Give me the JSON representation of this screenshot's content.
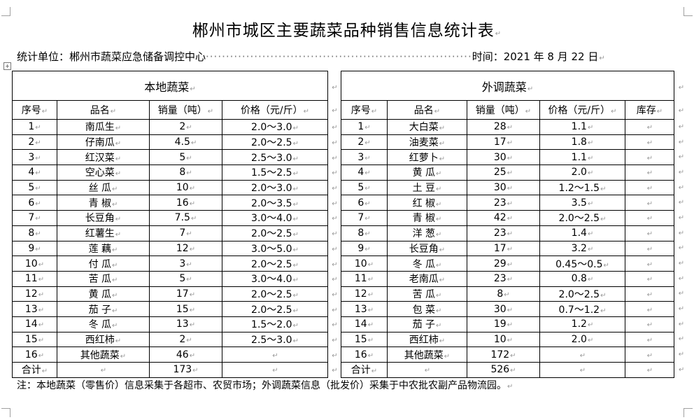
{
  "title": "郴州市城区主要蔬菜品种销售信息统计表",
  "meta": {
    "unit_label": "统计单位：郴州市蔬菜应急储备调控中心",
    "date_label": "时间：2021 年 8 月 22 日"
  },
  "local": {
    "section_title": "本地蔬菜",
    "headers": [
      "序号",
      "品名",
      "销量（吨）",
      "价格（元/斤）"
    ],
    "rows": [
      [
        "1",
        "南瓜生",
        "2",
        "2.0～3.0"
      ],
      [
        "2",
        "仔南瓜",
        "4.5",
        "2.0～2.5"
      ],
      [
        "3",
        "红汉菜",
        "5",
        "2.5～3.0"
      ],
      [
        "4",
        "空心菜",
        "8",
        "1.5～2.5"
      ],
      [
        "5",
        "丝  瓜",
        "10",
        "2.0～3.0"
      ],
      [
        "6",
        "青  椒",
        "16",
        "2.0～3.5"
      ],
      [
        "7",
        "长豆角",
        "7.5",
        "3.0～4.0"
      ],
      [
        "8",
        "红薯生",
        "7",
        "2.0～2.5"
      ],
      [
        "9",
        "莲  藕",
        "12",
        "3.0～5.0"
      ],
      [
        "10",
        "付  瓜",
        "3",
        "2.0～2.5"
      ],
      [
        "11",
        "苦  瓜",
        "5",
        "3.0～4.0"
      ],
      [
        "12",
        "黄  瓜",
        "17",
        "2.0～2.5"
      ],
      [
        "13",
        "茄  子",
        "15",
        "2.0～2.5"
      ],
      [
        "14",
        "冬  瓜",
        "13",
        "1.5～2.0"
      ],
      [
        "15",
        "西红柿",
        "2",
        "2.5～3.0"
      ],
      [
        "16",
        "其他蔬菜",
        "46",
        ""
      ]
    ],
    "total": [
      "合计",
      "",
      "173",
      ""
    ]
  },
  "imported": {
    "section_title": "外调蔬菜",
    "headers": [
      "序号",
      "品名",
      "销量（吨）",
      "价格（元/斤）",
      "库存"
    ],
    "rows": [
      [
        "1",
        "大白菜",
        "28",
        "1.1",
        ""
      ],
      [
        "2",
        "油麦菜",
        "17",
        "1.8",
        ""
      ],
      [
        "3",
        "红萝卜",
        "30",
        "1.1",
        ""
      ],
      [
        "4",
        "黄  瓜",
        "25",
        "2.0",
        ""
      ],
      [
        "5",
        "土  豆",
        "30",
        "1.2～1.5",
        ""
      ],
      [
        "6",
        "红  椒",
        "23",
        "3.5",
        ""
      ],
      [
        "7",
        "青  椒",
        "42",
        "2.0～2.5",
        ""
      ],
      [
        "8",
        "洋  葱",
        "23",
        "1.4",
        ""
      ],
      [
        "9",
        "长豆角",
        "17",
        "3.2",
        ""
      ],
      [
        "10",
        "冬  瓜",
        "29",
        "0.45～0.5",
        ""
      ],
      [
        "11",
        "老南瓜",
        "23",
        "0.8",
        ""
      ],
      [
        "12",
        "苦  瓜",
        "8",
        "2.0～2.5",
        ""
      ],
      [
        "13",
        "包  菜",
        "30",
        "0.7～1.2",
        ""
      ],
      [
        "14",
        "茄  子",
        "19",
        "1.2",
        ""
      ],
      [
        "15",
        "西红柿",
        "10",
        "2.0",
        ""
      ],
      [
        "16",
        "其他蔬菜",
        "172",
        "",
        ""
      ]
    ],
    "total": [
      "合计",
      "",
      "526",
      "",
      ""
    ]
  },
  "note": "注：本地蔬菜（零售价）信息采集于各超市、农贸市场；外调蔬菜信息（批发价）采集于中农批农副产品物流园。"
}
